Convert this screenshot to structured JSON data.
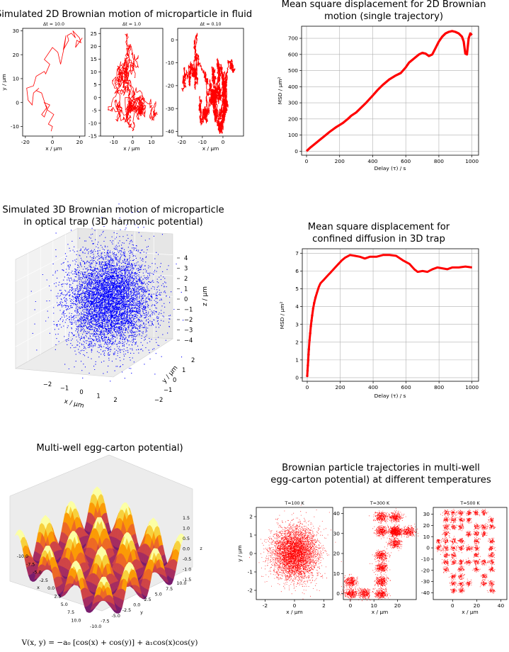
{
  "colors": {
    "trajectory": "#ff0000",
    "msd": "#ff0000",
    "scatter3d": "#0000ff",
    "grid": "#b0b0b0",
    "pane": "#eeeeee"
  },
  "chart_data": [
    {
      "id": "bm2d",
      "type": "line",
      "title": "Simulated 2D Brownian motion of microparticle in fluid",
      "panels": [
        {
          "subtitle": "Δt = 10.0",
          "xlabel": "x / μm",
          "ylabel": "y / μm",
          "xlim": [
            -22,
            24
          ],
          "ylim": [
            -14,
            31
          ],
          "xticks": [
            "-20",
            "0",
            "20"
          ],
          "yticks": [
            "-10",
            "0",
            "10",
            "20",
            "30"
          ],
          "x": [
            -1,
            0,
            -3,
            1,
            -4,
            -2,
            -6,
            -4,
            -8,
            -6,
            -4,
            -8,
            -12,
            -10,
            -14,
            -15,
            -18,
            -19,
            -14,
            -12,
            -6,
            -5,
            -2,
            -6,
            0,
            4,
            6,
            9,
            10,
            8,
            12,
            11,
            14,
            17,
            15,
            20,
            21,
            18,
            17,
            22
          ],
          "y": [
            -12,
            -10,
            -9,
            -5,
            -3,
            -1,
            0,
            -2,
            -5,
            -6,
            -3,
            4,
            5,
            6,
            4,
            -1,
            1,
            6,
            7,
            11,
            13,
            12,
            16,
            18,
            23,
            21,
            16,
            24,
            28,
            22,
            26,
            28,
            29,
            27,
            30,
            27,
            25,
            26,
            23,
            27
          ]
        },
        {
          "subtitle": "Δt = 1.0",
          "xlabel": "x / μm",
          "ylabel": "",
          "xlim": [
            -17,
            16
          ],
          "ylim": [
            -15,
            27
          ],
          "xticks": [
            "-10",
            "0",
            "10"
          ],
          "yticks": [
            "-15",
            "-10",
            "-5",
            "0",
            "5",
            "10",
            "15",
            "20",
            "25"
          ]
        },
        {
          "subtitle": "Δt = 0.10",
          "xlabel": "x / μm",
          "ylabel": "",
          "xlim": [
            -22,
            10
          ],
          "ylim": [
            -42,
            5
          ],
          "xticks": [
            "-20",
            "-10",
            "0"
          ],
          "yticks": [
            "-40",
            "-30",
            "-20",
            "-10",
            "0"
          ]
        }
      ]
    },
    {
      "id": "msd2d",
      "type": "line",
      "title": "Mean square displacement for 2D Brownian motion (single trajectory)",
      "title_lines": [
        "Mean square displacement for 2D Brownian",
        "motion (single trajectory)"
      ],
      "xlabel": "Delay (τ) / s",
      "ylabel": "MSD / μm²",
      "xlim": [
        -30,
        1040
      ],
      "ylim": [
        -25,
        775
      ],
      "xticks": [
        0,
        200,
        400,
        600,
        800,
        1000
      ],
      "yticks": [
        0,
        100,
        200,
        300,
        400,
        500,
        600,
        700
      ],
      "x": [
        0,
        20,
        50,
        80,
        110,
        140,
        180,
        220,
        250,
        270,
        300,
        330,
        360,
        400,
        430,
        460,
        500,
        540,
        570,
        600,
        620,
        650,
        680,
        700,
        720,
        740,
        760,
        780,
        800,
        820,
        840,
        860,
        880,
        900,
        920,
        940,
        950,
        960,
        970,
        980,
        990,
        1000
      ],
      "y": [
        0,
        20,
        45,
        70,
        95,
        120,
        150,
        175,
        200,
        220,
        240,
        270,
        300,
        345,
        380,
        410,
        445,
        470,
        485,
        520,
        550,
        575,
        600,
        610,
        605,
        590,
        600,
        640,
        680,
        710,
        730,
        740,
        745,
        740,
        730,
        710,
        680,
        605,
        600,
        700,
        730,
        720
      ]
    },
    {
      "id": "bm3d",
      "type": "scatter",
      "title_lines": [
        "Simulated 3D Brownian motion of microparticle",
        "in optical trap (3D harmonic potential)"
      ],
      "xlabel": "x / μm",
      "ylabel": "y / μm",
      "zlabel": "z / μm",
      "xticks": [
        "−2",
        "−1",
        "0",
        "1",
        "2"
      ],
      "yticks": [
        "2",
        "1",
        "0",
        "−1",
        "−2"
      ],
      "zticks": [
        "4",
        "3",
        "2",
        "1",
        "0",
        "−1",
        "−2",
        "−3",
        "−4"
      ],
      "distribution": "gaussian, σ ≈ 1 μm per axis"
    },
    {
      "id": "msd3d",
      "type": "line",
      "title_lines": [
        "Mean square displacement for",
        "confined diffusion in 3D trap"
      ],
      "xlabel": "Delay (τ) / s",
      "ylabel": "MSD / μm²",
      "xlim": [
        -30,
        1040
      ],
      "ylim": [
        -0.2,
        7.25
      ],
      "xticks": [
        0,
        200,
        400,
        600,
        800,
        1000
      ],
      "yticks": [
        0,
        1,
        2,
        3,
        4,
        5,
        6,
        7
      ],
      "x": [
        0,
        2,
        4,
        6,
        8,
        10,
        14,
        18,
        22,
        26,
        30,
        36,
        42,
        50,
        60,
        70,
        80,
        90,
        100,
        110,
        120,
        130,
        140,
        150,
        170,
        190,
        210,
        230,
        260,
        290,
        320,
        350,
        380,
        420,
        460,
        500,
        540,
        580,
        620,
        650,
        670,
        700,
        730,
        760,
        790,
        820,
        850,
        880,
        920,
        960,
        1000
      ],
      "y": [
        0.1,
        0.4,
        0.7,
        1.0,
        1.3,
        1.6,
        2.1,
        2.5,
        2.9,
        3.2,
        3.5,
        3.9,
        4.2,
        4.5,
        4.8,
        5.1,
        5.3,
        5.4,
        5.5,
        5.6,
        5.7,
        5.8,
        5.9,
        6.0,
        6.2,
        6.4,
        6.6,
        6.75,
        6.9,
        6.85,
        6.8,
        6.7,
        6.8,
        6.8,
        6.9,
        6.9,
        6.85,
        6.6,
        6.4,
        6.1,
        5.95,
        6.0,
        5.95,
        6.1,
        6.2,
        6.15,
        6.1,
        6.2,
        6.2,
        6.25,
        6.2
      ]
    },
    {
      "id": "eggcarton",
      "type": "surface",
      "title": "Multi-well egg-carton potential)",
      "xlabel": "x",
      "ylabel": "y",
      "zlabel": "z",
      "xticks": [
        "-10.0",
        "-7.5",
        "-5.0",
        "-2.5",
        "0.0",
        "2.5",
        "5.0",
        "7.5",
        "10.0"
      ],
      "yticks": [
        "-10.0",
        "-7.5",
        "-5.0",
        "-2.5",
        "0.0",
        "2.5",
        "5.0",
        "7.5",
        "10.0"
      ],
      "zticks": [
        "1.5",
        "1.0",
        "0.5",
        "0.0",
        "-0.5",
        "-1.0",
        "-1.5"
      ],
      "equation": "V(x, y) = −a₀ [cos(x) + cos(y)] + a₁cos(x)cos(y)"
    },
    {
      "id": "eggtraj",
      "type": "scatter",
      "title_lines": [
        "Brownian particle trajectories in multi-well",
        "egg-carton potential) at different temperatures"
      ],
      "panels": [
        {
          "subtitle": "T=100 K",
          "xlabel": "x / μm",
          "ylabel": "y / μm",
          "xlim": [
            -2.6,
            2.6
          ],
          "ylim": [
            -2.5,
            2.5
          ],
          "xticks": [
            "-2",
            "0",
            "2"
          ],
          "yticks": [
            "-2",
            "-1",
            "0",
            "1",
            "2"
          ]
        },
        {
          "subtitle": "T=300 K",
          "xlabel": "x / μm",
          "ylabel": "",
          "xlim": [
            -3,
            28
          ],
          "ylim": [
            -3,
            43
          ],
          "xticks": [
            "0",
            "10",
            "20"
          ],
          "yticks": [
            "0",
            "10",
            "20",
            "30",
            "40"
          ],
          "wells": [
            [
              0,
              6
            ],
            [
              0,
              0
            ],
            [
              6,
              0
            ],
            [
              13,
              0
            ],
            [
              13,
              6
            ],
            [
              13,
              13
            ],
            [
              13,
              19
            ],
            [
              19,
              25
            ],
            [
              19,
              31
            ],
            [
              19,
              38
            ],
            [
              13,
              31
            ],
            [
              13,
              38
            ],
            [
              25,
              31
            ]
          ]
        },
        {
          "subtitle": "T=500 K",
          "xlabel": "x / μm",
          "ylabel": "",
          "xlim": [
            -16,
            45
          ],
          "ylim": [
            -46,
            36
          ],
          "xticks": [
            "0",
            "20",
            "40"
          ],
          "yticks": [
            "-40",
            "-30",
            "-20",
            "-10",
            "0",
            "10",
            "20",
            "30"
          ]
        }
      ]
    }
  ]
}
